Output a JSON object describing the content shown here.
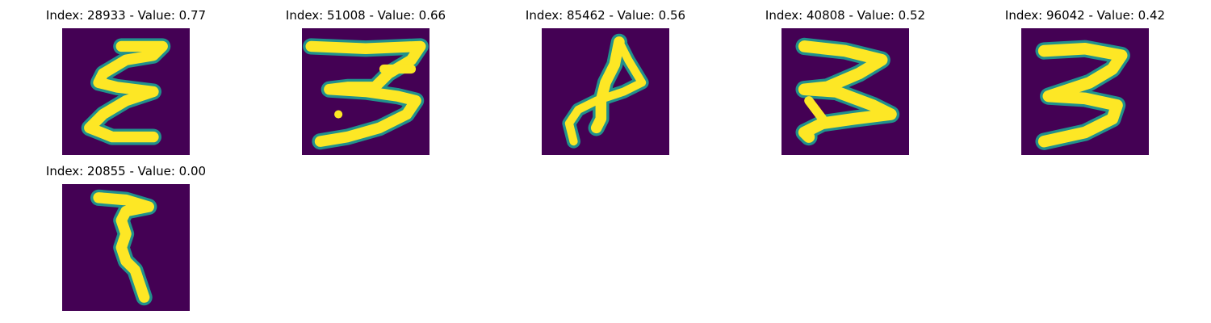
{
  "panels": [
    {
      "title": "Index: 28933 - Value: 0.77"
    },
    {
      "title": "Index: 51008 - Value: 0.66"
    },
    {
      "title": "Index: 85462 - Value: 0.56"
    },
    {
      "title": "Index: 40808 - Value: 0.52"
    },
    {
      "title": "Index: 96042 - Value: 0.42"
    },
    {
      "title": "Index: 20855 - Value: 0.00"
    }
  ],
  "colors": {
    "background": "#440154",
    "ink": "#fde725",
    "edge": "#35b779",
    "edge_dark": "#21918c"
  }
}
